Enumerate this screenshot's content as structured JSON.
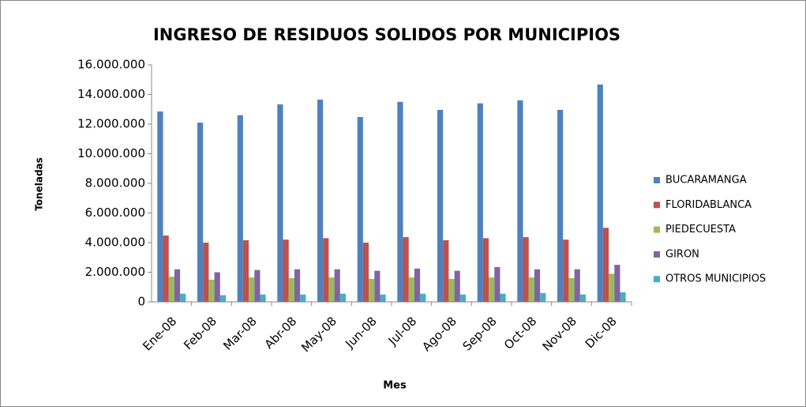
{
  "chart_data": {
    "type": "bar",
    "title": "INGRESO DE RESIDUOS SOLIDOS POR MUNICIPIOS",
    "x_label": "Mes",
    "y_label": "Toneladas",
    "categories": [
      "Ene-08",
      "Feb-08",
      "Mar-08",
      "Abr-08",
      "May-08",
      "Jun-08",
      "Jul-08",
      "Ago-08",
      "Sep-08",
      "Oct-08",
      "Nov-08",
      "Dic-08"
    ],
    "series": [
      {
        "name": "BUCARAMANGA",
        "color": "#4f81bd",
        "values": [
          12850000,
          12100000,
          12600000,
          13330000,
          13650000,
          12480000,
          13500000,
          12960000,
          13400000,
          13600000,
          12960000,
          14670000
        ]
      },
      {
        "name": "FLORIDABLANCA",
        "color": "#c0504d",
        "values": [
          4480000,
          4000000,
          4160000,
          4200000,
          4300000,
          4000000,
          4370000,
          4160000,
          4300000,
          4370000,
          4200000,
          5000000
        ]
      },
      {
        "name": "PIEDECUESTA",
        "color": "#9bbb59",
        "values": [
          1700000,
          1500000,
          1650000,
          1600000,
          1650000,
          1550000,
          1650000,
          1550000,
          1650000,
          1650000,
          1600000,
          1900000
        ]
      },
      {
        "name": "GIRON",
        "color": "#8064a2",
        "values": [
          2200000,
          2000000,
          2150000,
          2200000,
          2200000,
          2100000,
          2250000,
          2100000,
          2350000,
          2200000,
          2200000,
          2500000
        ]
      },
      {
        "name": "OTROS MUNICIPIOS",
        "color": "#4bacc6",
        "values": [
          550000,
          450000,
          500000,
          500000,
          550000,
          500000,
          550000,
          500000,
          550000,
          600000,
          500000,
          650000
        ]
      }
    ],
    "ylim": [
      0,
      16000000
    ],
    "yticks": [
      0,
      {
        "value": 2000000,
        "label": "2.000.000"
      },
      {
        "value": 4000000,
        "label": "4.000.000"
      },
      {
        "value": 6000000,
        "label": "6.000.000"
      },
      {
        "value": 8000000,
        "label": "8.000.000"
      },
      {
        "value": 10000000,
        "label": "10.000.000"
      },
      {
        "value": 12000000,
        "label": "12.000.000"
      },
      {
        "value": 14000000,
        "label": "14.000.000"
      },
      {
        "value": 16000000,
        "label": "16.000.000"
      }
    ],
    "legend": "right"
  }
}
